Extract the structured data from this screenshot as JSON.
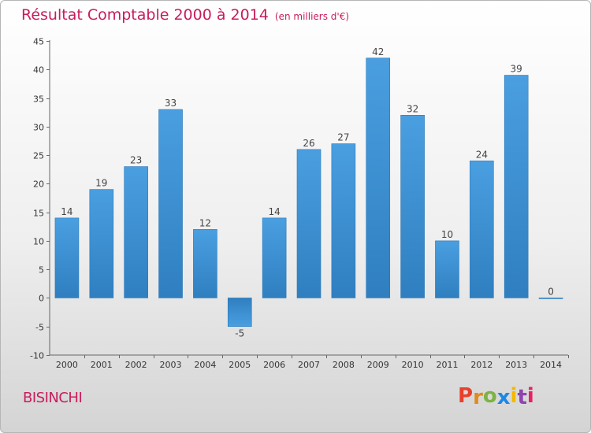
{
  "header": {
    "title": "Résultat Comptable 2000 à 2014",
    "unit": "(en milliers d'€)"
  },
  "footer": {
    "place": "BISINCHI",
    "logo": [
      "P",
      "r",
      "o",
      "x",
      "i",
      "t",
      "i"
    ]
  },
  "colors": {
    "title": "#c81c5c",
    "bar": "#4a9fe0",
    "bar_dark": "#2f7fc0",
    "logo": [
      "#e8412b",
      "#e08a1f",
      "#7cb342",
      "#1e88e5",
      "#f5b800",
      "#8e44ad",
      "#e91e63"
    ]
  },
  "chart_data": {
    "type": "bar",
    "title": "Résultat Comptable 2000 à 2014",
    "ylabel": "en milliers d'€",
    "xlabel": "",
    "categories": [
      "2000",
      "2001",
      "2002",
      "2003",
      "2004",
      "2005",
      "2006",
      "2007",
      "2008",
      "2009",
      "2010",
      "2011",
      "2012",
      "2013",
      "2014"
    ],
    "values": [
      14,
      19,
      23,
      33,
      12,
      -5,
      14,
      26,
      27,
      42,
      32,
      10,
      24,
      39,
      0
    ],
    "ylim": [
      -10,
      45
    ],
    "yticks": [
      -10,
      -5,
      0,
      5,
      10,
      15,
      20,
      25,
      30,
      35,
      40,
      45
    ],
    "grid": false
  }
}
